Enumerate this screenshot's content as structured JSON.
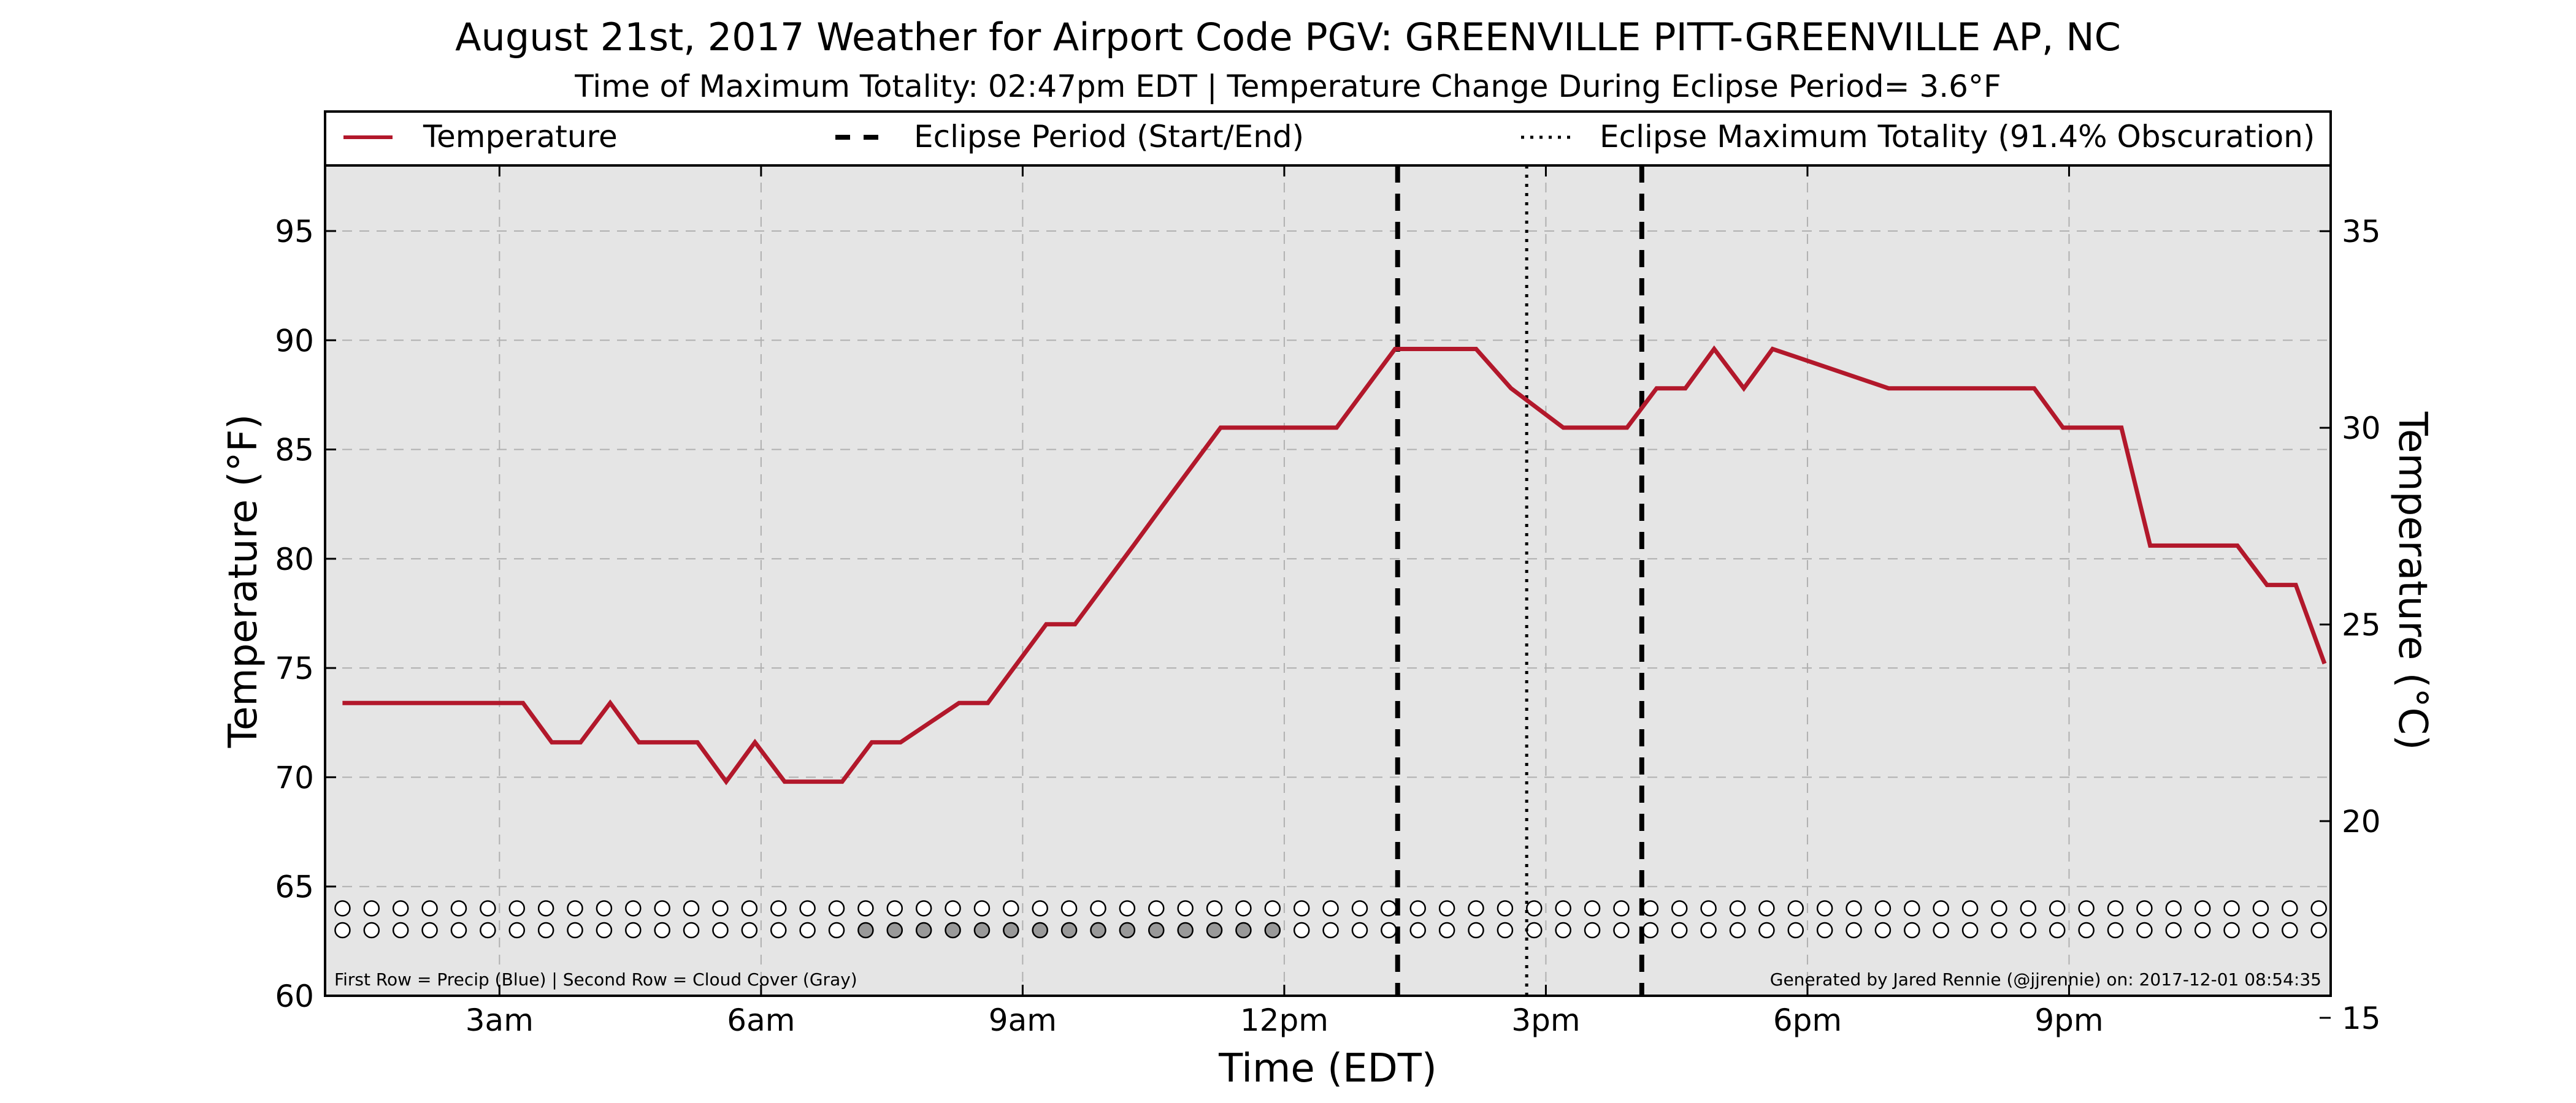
{
  "chart_data": {
    "type": "line",
    "title": "August 21st, 2017 Weather for Airport Code PGV: GREENVILLE PITT-GREENVILLE AP, NC",
    "subtitle": "Time of Maximum Totality: 02:47pm EDT | Temperature Change During Eclipse Period= 3.6°F",
    "xlabel": "Time (EDT)",
    "ylabel_left": "Temperature (°F)",
    "ylabel_right": "Temperature (°C)",
    "xlim": [
      1.0,
      24.0
    ],
    "ylim_left": [
      60,
      98
    ],
    "ylim_right": [
      15.56,
      36.67
    ],
    "x_ticks": [
      {
        "value": 3,
        "label": "3am"
      },
      {
        "value": 6,
        "label": "6am"
      },
      {
        "value": 9,
        "label": "9am"
      },
      {
        "value": 12,
        "label": "12pm"
      },
      {
        "value": 15,
        "label": "3pm"
      },
      {
        "value": 18,
        "label": "6pm"
      },
      {
        "value": 21,
        "label": "9pm"
      }
    ],
    "y_ticks_left": [
      60,
      65,
      70,
      75,
      80,
      85,
      90,
      95
    ],
    "y_ticks_right": [
      15,
      20,
      25,
      30,
      35
    ],
    "grid": true,
    "legend": {
      "placement": "top",
      "entries": [
        {
          "label": "Temperature",
          "style": "solid"
        },
        {
          "label": "Eclipse Period (Start/End)",
          "style": "dashed"
        },
        {
          "label": "Eclipse Maximum Totality (91.4% Obscuration)",
          "style": "dotted"
        }
      ]
    },
    "series": [
      {
        "name": "Temperature",
        "color": "#b2182b",
        "x": [
          1.2,
          3.27,
          3.6,
          3.93,
          4.27,
          4.6,
          5.27,
          5.6,
          5.93,
          6.27,
          6.93,
          7.27,
          7.6,
          8.27,
          8.6,
          9.27,
          9.6,
          10.27,
          10.6,
          11.27,
          11.6,
          12.6,
          13.27,
          13.6,
          14.2,
          14.6,
          15.2,
          15.6,
          15.93,
          16.27,
          16.6,
          16.93,
          17.27,
          17.6,
          18.93,
          19.27,
          19.6,
          20.6,
          20.93,
          21.6,
          21.93,
          22.6,
          22.93,
          23.27,
          23.6,
          23.93
        ],
        "values": [
          73.4,
          73.4,
          71.6,
          71.6,
          73.4,
          71.6,
          71.6,
          69.8,
          71.6,
          69.8,
          69.8,
          71.6,
          71.6,
          73.4,
          73.4,
          77.0,
          77.0,
          80.6,
          82.4,
          86.0,
          86.0,
          86.0,
          89.6,
          89.6,
          89.6,
          87.8,
          86.0,
          86.0,
          86.0,
          87.8,
          87.8,
          89.6,
          87.8,
          89.6,
          87.8,
          87.8,
          87.8,
          87.8,
          86.0,
          86.0,
          80.6,
          80.6,
          80.6,
          78.8,
          78.8,
          75.2
        ]
      }
    ],
    "eclipse": {
      "start": 13.3,
      "end": 16.1,
      "max_totality": 14.78
    },
    "cloud_cover_markers": {
      "first_row": "Precip (Blue)",
      "second_row": "Cloud Cover (Gray)",
      "first_row_y": 64.0,
      "second_row_y": 63.0,
      "x_start": 1.2,
      "x_step": 0.3333,
      "count": 69,
      "second_row_filled_range": [
        7.0,
        12.0
      ],
      "precip_color": "#ffffff",
      "cloud_fill_color": "#999999"
    },
    "footnote_left": "First Row = Precip (Blue) | Second Row = Cloud Cover (Gray)",
    "footnote_right": "Generated by Jared Rennie (@jjrennie) on: 2017-12-01 08:54:35",
    "colors": {
      "background": "#e5e5e5",
      "grid": "#b0b0b0",
      "line": "#b2182b"
    }
  }
}
